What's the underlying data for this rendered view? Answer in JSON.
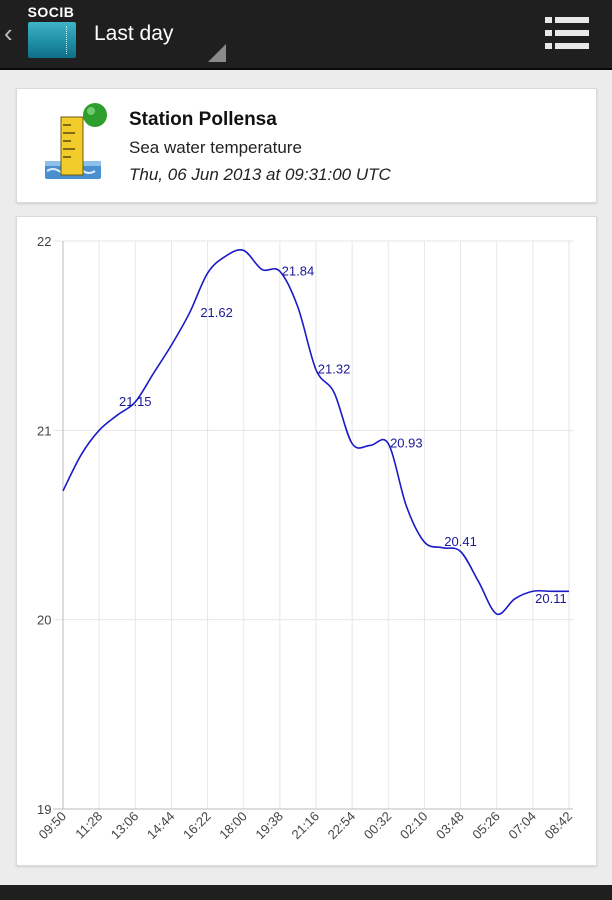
{
  "actionbar": {
    "logo_text": "SOCIB",
    "title": "Last day",
    "icons": {
      "back": "chevron-left-icon",
      "menu": "menu-icon",
      "spinner": "dropdown-triangle-icon"
    }
  },
  "station": {
    "name": "Station Pollensa",
    "variable": "Sea water temperature",
    "timestamp": "Thu, 06 Jun 2013 at 09:31:00 UTC",
    "icon": "tide-gauge-icon",
    "status_color": "#2e9e2e"
  },
  "chart_data": {
    "type": "line",
    "title": "",
    "xlabel": "",
    "ylabel": "",
    "ylim": [
      19,
      22
    ],
    "yticks": [
      19,
      20,
      21,
      22
    ],
    "x_tick_labels": [
      "09:50",
      "11:28",
      "13:06",
      "14:44",
      "16:22",
      "18:00",
      "19:38",
      "21:16",
      "22:54",
      "00:32",
      "02:10",
      "03:48",
      "05:26",
      "07:04",
      "08:42"
    ],
    "grid": true,
    "line_color": "#1a1ac8",
    "series": [
      {
        "x": [
          0,
          0.5,
          1,
          1.5,
          2,
          2.5,
          3,
          3.5,
          4,
          4.5,
          5,
          5.5,
          6,
          6.5,
          7,
          7.5,
          8,
          8.5,
          9,
          9.5,
          10,
          10.5,
          11,
          11.5,
          12,
          12.5,
          13,
          13.5,
          14
        ],
        "values": [
          20.68,
          20.87,
          21.0,
          21.08,
          21.15,
          21.3,
          21.45,
          21.62,
          21.83,
          21.92,
          21.95,
          21.85,
          21.84,
          21.65,
          21.32,
          21.2,
          20.93,
          20.92,
          20.93,
          20.6,
          20.41,
          20.38,
          20.36,
          20.2,
          20.03,
          20.11,
          20.15,
          20.15,
          20.15
        ]
      }
    ],
    "data_labels": [
      {
        "x": 2,
        "y": 21.15,
        "text": "21.15"
      },
      {
        "x": 4.25,
        "y": 21.62,
        "text": "21.62"
      },
      {
        "x": 6.5,
        "y": 21.84,
        "text": "21.84"
      },
      {
        "x": 7.5,
        "y": 21.32,
        "text": "21.32"
      },
      {
        "x": 9.5,
        "y": 20.93,
        "text": "20.93"
      },
      {
        "x": 11,
        "y": 20.41,
        "text": "20.41"
      },
      {
        "x": 13.5,
        "y": 20.11,
        "text": "20.11"
      }
    ]
  }
}
